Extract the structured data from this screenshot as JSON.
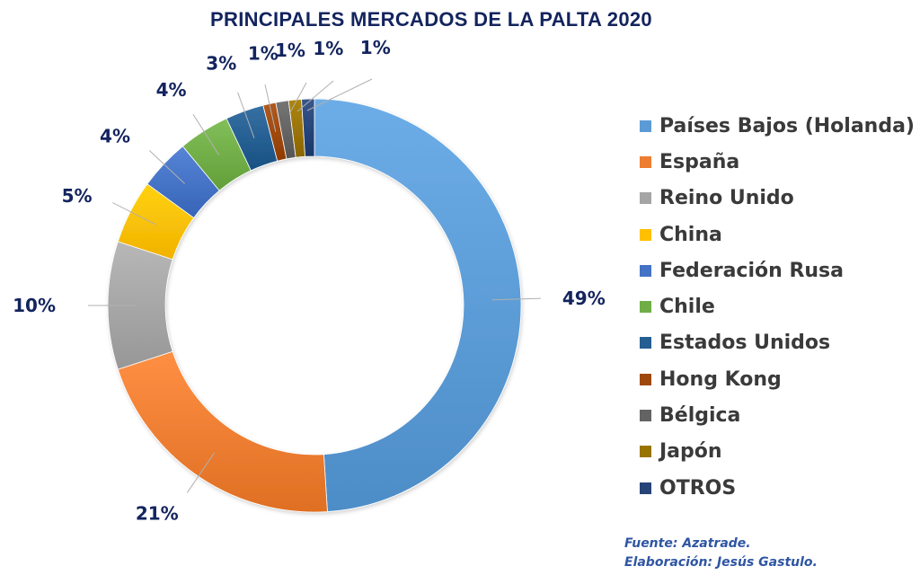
{
  "chart_data": {
    "type": "pie",
    "variant": "donut",
    "title": "PRINCIPALES MERCADOS DE LA PALTA 2020",
    "categories": [
      "Países Bajos (Holanda)",
      "España",
      "Reino Unido",
      "China",
      "Federación Rusa",
      "Chile",
      "Estados Unidos",
      "Hong Kong",
      "Bélgica",
      "Japón",
      "OTROS"
    ],
    "values": [
      49,
      21,
      10,
      5,
      4,
      4,
      3,
      1,
      1,
      1,
      1
    ],
    "data_labels": [
      "49%",
      "21%",
      "10%",
      "5%",
      "4%",
      "4%",
      "3%",
      "1%",
      "1%",
      "1%",
      "1%"
    ],
    "unit": "%",
    "colors": [
      "#5b9bd5",
      "#ed7d31",
      "#a5a5a5",
      "#ffc000",
      "#4472c4",
      "#70ad47",
      "#255e91",
      "#9e480e",
      "#636363",
      "#997300",
      "#264478"
    ],
    "legend_position": "right"
  },
  "source": {
    "line1": "Fuente: Azatrade.",
    "line2": "Elaboración: Jesús Gastulo."
  }
}
